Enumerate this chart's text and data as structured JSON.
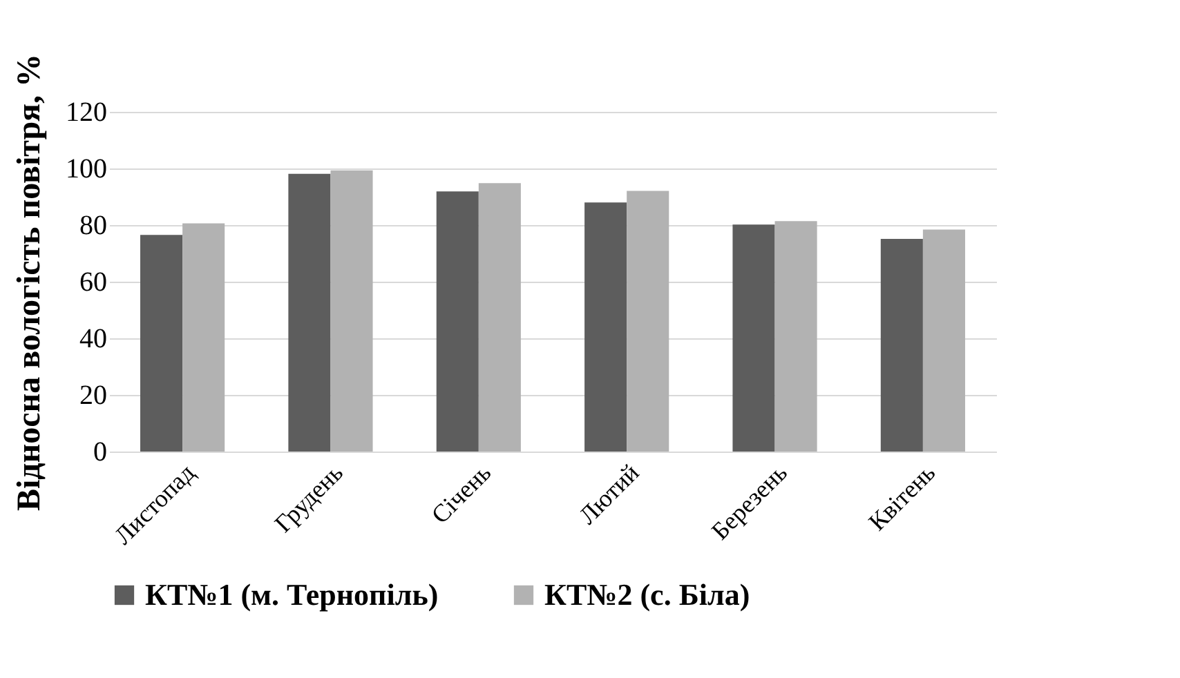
{
  "chart_data": {
    "type": "bar",
    "ylabel": "Відносна вологість повітря, %",
    "categories": [
      "Листопад",
      "Грудень",
      "Січень",
      "Лютий",
      "Березень",
      "Квітень"
    ],
    "series": [
      {
        "name": "КТ№1 (м. Тернопіль)",
        "color": "#5d5d5d",
        "values": [
          76.5,
          98.1,
          91.9,
          88.0,
          80.2,
          75.1
        ]
      },
      {
        "name": "КТ№2 (с. Біла)",
        "color": "#b2b2b2",
        "values": [
          80.6,
          99.3,
          94.8,
          92.1,
          81.4,
          78.4
        ]
      }
    ],
    "ylim": [
      0,
      120
    ],
    "yticks": [
      0,
      20,
      40,
      60,
      80,
      100,
      120
    ],
    "grid": "y",
    "legend": "bottom"
  }
}
